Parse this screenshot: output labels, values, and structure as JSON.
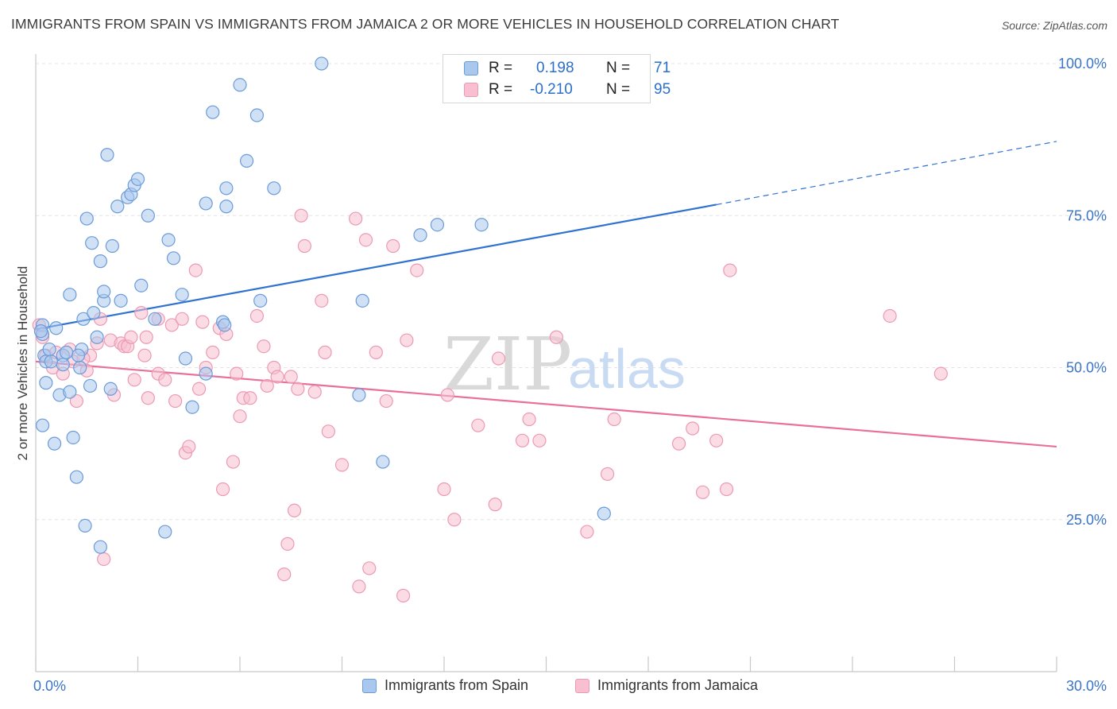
{
  "title": "IMMIGRANTS FROM SPAIN VS IMMIGRANTS FROM JAMAICA 2 OR MORE VEHICLES IN HOUSEHOLD CORRELATION CHART",
  "source": "Source: ZipAtlas.com",
  "watermark": {
    "zip": "ZIP",
    "atlas": "atlas"
  },
  "colors": {
    "spain_fill": "#aac8ee",
    "spain_stroke": "#6b9bd8",
    "spain_line": "#2f72d0",
    "jamaica_fill": "#f7bfd0",
    "jamaica_stroke": "#ec9ab4",
    "jamaica_line": "#e8709a",
    "tick_label": "#3b74c6",
    "grid": "#e3e3e3"
  },
  "stats": {
    "r_label": "R =",
    "n_label": "N =",
    "spain": {
      "r": "0.198",
      "n": "71"
    },
    "jamaica": {
      "r": "-0.210",
      "n": "95"
    }
  },
  "chart_data": {
    "type": "scatter",
    "xlabel": "",
    "ylabel": "2 or more Vehicles in Household",
    "xlim": [
      0,
      30
    ],
    "ylim": [
      0,
      100
    ],
    "x_tick_labels": [
      "0.0%",
      "30.0%"
    ],
    "y_tick_labels": [
      "25.0%",
      "50.0%",
      "75.0%",
      "100.0%"
    ],
    "grid": "horizontal dashed",
    "legend_position": "bottom-center",
    "series": [
      {
        "name": "Immigrants from Spain",
        "r": 0.198,
        "n": 71,
        "trend": {
          "x0": 0,
          "y0": 56.3,
          "x1": 20,
          "y1": 76.8,
          "dashed_to_x": 30,
          "dashed_to_y": 87.2
        },
        "points": [
          [
            0.2,
            57.0
          ],
          [
            0.2,
            55.5
          ],
          [
            0.25,
            52.0
          ],
          [
            0.3,
            51.0
          ],
          [
            0.3,
            47.5
          ],
          [
            0.2,
            40.5
          ],
          [
            0.55,
            37.5
          ],
          [
            0.6,
            56.5
          ],
          [
            0.7,
            45.5
          ],
          [
            0.8,
            52.0
          ],
          [
            0.8,
            50.5
          ],
          [
            1.0,
            62.0
          ],
          [
            1.0,
            46.0
          ],
          [
            1.1,
            38.5
          ],
          [
            1.2,
            32.0
          ],
          [
            1.3,
            50.0
          ],
          [
            1.35,
            53.0
          ],
          [
            1.4,
            58.0
          ],
          [
            1.45,
            24.0
          ],
          [
            1.6,
            47.0
          ],
          [
            1.5,
            74.5
          ],
          [
            1.65,
            70.5
          ],
          [
            1.7,
            59.0
          ],
          [
            1.8,
            55.0
          ],
          [
            1.9,
            67.5
          ],
          [
            1.9,
            20.5
          ],
          [
            2.0,
            61.0
          ],
          [
            2.0,
            62.5
          ],
          [
            2.1,
            85.0
          ],
          [
            2.2,
            46.5
          ],
          [
            2.25,
            70.0
          ],
          [
            2.4,
            76.5
          ],
          [
            2.5,
            61.0
          ],
          [
            2.7,
            78.0
          ],
          [
            2.8,
            78.5
          ],
          [
            2.9,
            80.0
          ],
          [
            3.0,
            81.0
          ],
          [
            3.1,
            63.5
          ],
          [
            3.3,
            75.0
          ],
          [
            3.5,
            58.0
          ],
          [
            3.8,
            23.0
          ],
          [
            3.9,
            71.0
          ],
          [
            4.05,
            68.0
          ],
          [
            4.3,
            62.0
          ],
          [
            4.4,
            51.5
          ],
          [
            4.6,
            43.5
          ],
          [
            5.0,
            77.0
          ],
          [
            5.0,
            49.0
          ],
          [
            5.2,
            92.0
          ],
          [
            5.5,
            57.5
          ],
          [
            5.55,
            57.0
          ],
          [
            5.6,
            79.5
          ],
          [
            5.6,
            76.5
          ],
          [
            6.0,
            96.5
          ],
          [
            6.2,
            84.0
          ],
          [
            6.5,
            91.5
          ],
          [
            6.6,
            61.0
          ],
          [
            7.0,
            79.5
          ],
          [
            8.4,
            100.0
          ],
          [
            9.5,
            45.5
          ],
          [
            9.6,
            61.0
          ],
          [
            10.2,
            34.5
          ],
          [
            11.3,
            71.8
          ],
          [
            11.8,
            73.5
          ],
          [
            13.1,
            73.5
          ],
          [
            16.7,
            26.0
          ],
          [
            0.15,
            56.0
          ],
          [
            0.4,
            53.0
          ],
          [
            1.25,
            52.0
          ],
          [
            0.9,
            52.5
          ],
          [
            0.45,
            51.0
          ]
        ]
      },
      {
        "name": "Immigrants from Jamaica",
        "r": -0.21,
        "n": 95,
        "trend": {
          "x0": 0,
          "y0": 51.0,
          "x1": 30,
          "y1": 37.0
        },
        "points": [
          [
            0.1,
            57.0
          ],
          [
            0.2,
            55.0
          ],
          [
            0.3,
            52.0
          ],
          [
            0.5,
            50.0
          ],
          [
            0.8,
            49.0
          ],
          [
            1.0,
            53.0
          ],
          [
            1.2,
            44.5
          ],
          [
            1.5,
            49.5
          ],
          [
            1.6,
            52.0
          ],
          [
            1.8,
            54.0
          ],
          [
            1.9,
            58.0
          ],
          [
            2.0,
            18.5
          ],
          [
            2.2,
            54.5
          ],
          [
            2.3,
            45.5
          ],
          [
            2.5,
            54.0
          ],
          [
            2.6,
            53.5
          ],
          [
            2.7,
            53.5
          ],
          [
            2.9,
            48.0
          ],
          [
            3.1,
            59.0
          ],
          [
            3.2,
            52.0
          ],
          [
            3.25,
            55.0
          ],
          [
            3.3,
            45.0
          ],
          [
            3.6,
            58.0
          ],
          [
            3.6,
            49.0
          ],
          [
            3.8,
            48.0
          ],
          [
            4.0,
            57.0
          ],
          [
            4.1,
            44.5
          ],
          [
            4.3,
            58.0
          ],
          [
            4.4,
            36.0
          ],
          [
            4.5,
            37.0
          ],
          [
            4.7,
            66.0
          ],
          [
            4.8,
            46.5
          ],
          [
            4.9,
            57.5
          ],
          [
            5.0,
            50.0
          ],
          [
            5.2,
            52.5
          ],
          [
            5.4,
            56.5
          ],
          [
            5.5,
            30.0
          ],
          [
            5.6,
            55.5
          ],
          [
            5.8,
            34.5
          ],
          [
            5.9,
            49.0
          ],
          [
            6.0,
            42.0
          ],
          [
            6.1,
            45.0
          ],
          [
            6.3,
            45.0
          ],
          [
            6.5,
            58.5
          ],
          [
            6.7,
            53.5
          ],
          [
            6.8,
            47.0
          ],
          [
            7.0,
            50.0
          ],
          [
            7.1,
            48.5
          ],
          [
            7.3,
            16.0
          ],
          [
            7.4,
            21.0
          ],
          [
            7.5,
            48.5
          ],
          [
            7.6,
            26.5
          ],
          [
            7.7,
            46.5
          ],
          [
            7.8,
            75.0
          ],
          [
            7.9,
            70.0
          ],
          [
            8.2,
            46.0
          ],
          [
            8.4,
            61.0
          ],
          [
            8.5,
            52.5
          ],
          [
            8.6,
            39.5
          ],
          [
            9.0,
            34.0
          ],
          [
            9.4,
            74.5
          ],
          [
            9.5,
            14.0
          ],
          [
            9.7,
            71.0
          ],
          [
            9.8,
            17.0
          ],
          [
            10.0,
            52.5
          ],
          [
            10.3,
            44.5
          ],
          [
            10.5,
            70.0
          ],
          [
            10.8,
            12.5
          ],
          [
            10.9,
            54.5
          ],
          [
            11.2,
            66.0
          ],
          [
            12.0,
            30.0
          ],
          [
            12.1,
            45.5
          ],
          [
            12.3,
            25.0
          ],
          [
            13.0,
            40.5
          ],
          [
            13.5,
            27.5
          ],
          [
            13.6,
            51.5
          ],
          [
            14.3,
            38.0
          ],
          [
            14.5,
            41.5
          ],
          [
            14.8,
            38.0
          ],
          [
            15.3,
            55.0
          ],
          [
            16.2,
            23.0
          ],
          [
            16.8,
            32.5
          ],
          [
            17.0,
            41.5
          ],
          [
            18.9,
            37.5
          ],
          [
            19.3,
            40.0
          ],
          [
            19.6,
            29.5
          ],
          [
            20.0,
            38.0
          ],
          [
            20.3,
            30.0
          ],
          [
            20.4,
            66.0
          ],
          [
            25.1,
            58.5
          ],
          [
            26.6,
            49.0
          ],
          [
            0.6,
            52.5
          ],
          [
            1.1,
            51.0
          ],
          [
            1.4,
            51.5
          ],
          [
            2.8,
            55.0
          ]
        ]
      }
    ]
  },
  "legend": {
    "spain": "Immigrants from Spain",
    "jamaica": "Immigrants from Jamaica"
  }
}
